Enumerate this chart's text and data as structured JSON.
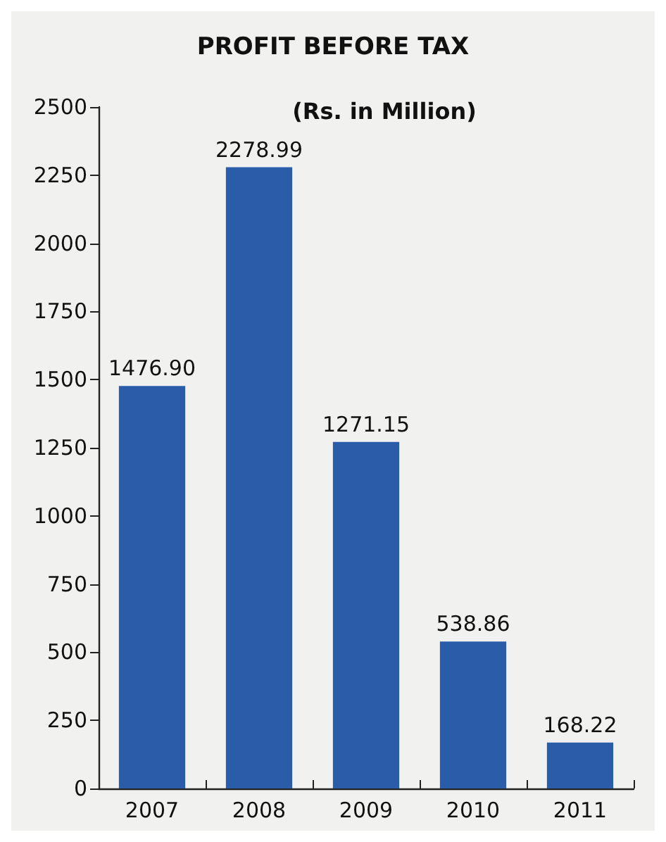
{
  "chart_data": {
    "type": "bar",
    "title": "PROFIT BEFORE TAX",
    "subtitle": "(Rs. in Million)",
    "categories": [
      "2007",
      "2008",
      "2009",
      "2010",
      "2011"
    ],
    "values": [
      1476.9,
      2278.99,
      1271.15,
      538.86,
      168.22
    ],
    "value_labels": [
      "1476.90",
      "2278.99",
      "1271.15",
      "538.86",
      "168.22"
    ],
    "color": "#2a5caa",
    "ylim": [
      0,
      2500
    ],
    "yticks": [
      0,
      250,
      500,
      750,
      1000,
      1250,
      1500,
      1750,
      2000,
      2250,
      2500
    ],
    "grid": false
  }
}
